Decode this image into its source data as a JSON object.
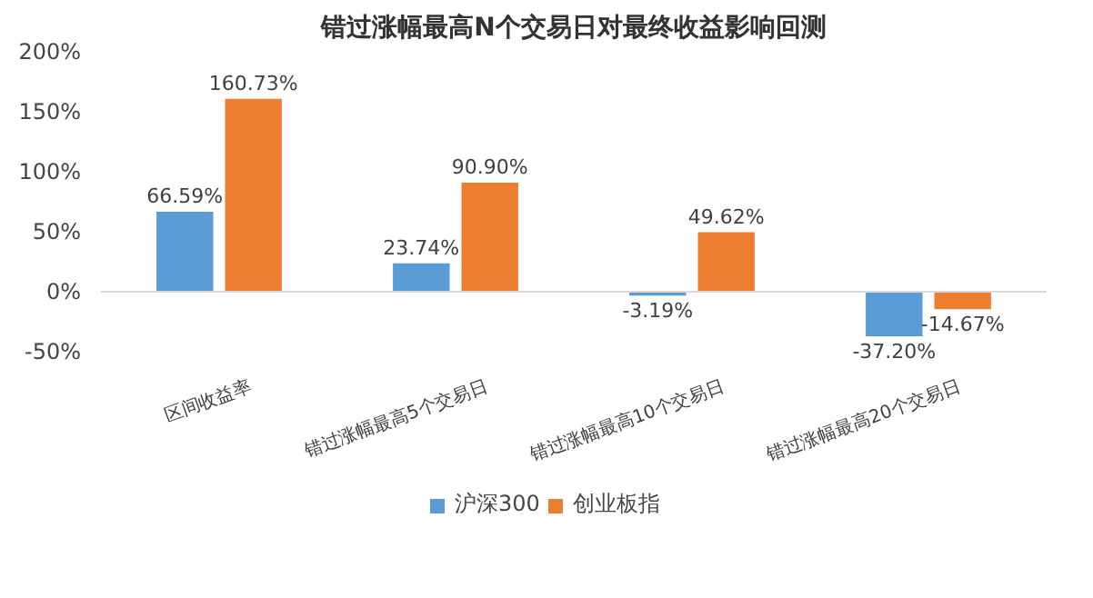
{
  "chart_data": {
    "type": "bar",
    "title": "错过涨幅最高N个交易日对最终收益影响回测",
    "categories": [
      "区间收益率",
      "错过涨幅最高5个交易日",
      "错过涨幅最高10个交易日",
      "错过涨幅最高20个交易日"
    ],
    "series": [
      {
        "name": "沪深300",
        "color": "#5b9bd5",
        "values": [
          66.59,
          23.74,
          -3.19,
          -37.2
        ],
        "value_labels": [
          "66.59%",
          "23.74%",
          "-3.19%",
          "-37.20%"
        ]
      },
      {
        "name": "创业板指",
        "color": "#ed7d31",
        "values": [
          160.73,
          90.9,
          49.62,
          -14.67
        ],
        "value_labels": [
          "160.73%",
          "90.90%",
          "49.62%",
          "-14.67%"
        ]
      }
    ],
    "ylim": [
      -50,
      200
    ],
    "yticks": [
      {
        "value": -50,
        "label": "-50%"
      },
      {
        "value": 0,
        "label": "0%"
      },
      {
        "value": 50,
        "label": "50%"
      },
      {
        "value": 100,
        "label": "100%"
      },
      {
        "value": 150,
        "label": "150%"
      },
      {
        "value": 200,
        "label": "200%"
      }
    ],
    "legend": "bottom"
  }
}
